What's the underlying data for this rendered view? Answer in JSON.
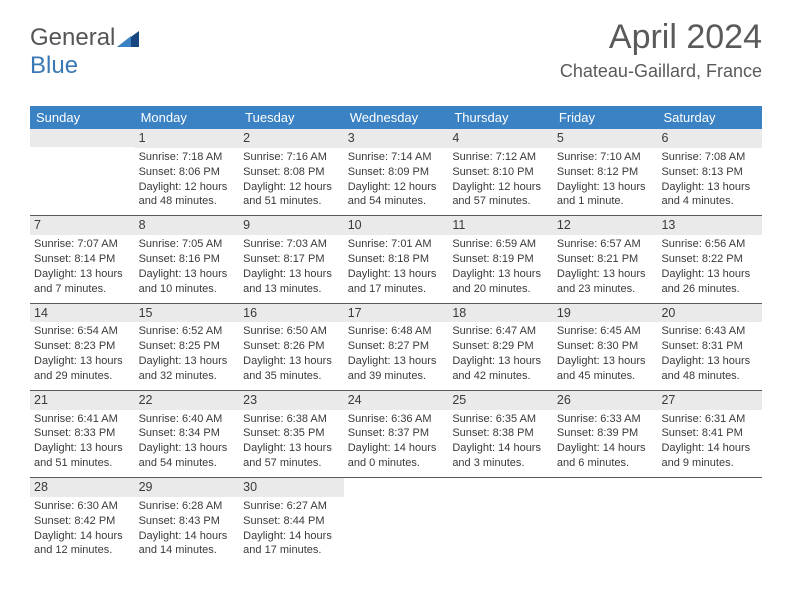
{
  "brand": {
    "part1": "General",
    "part2": "Blue"
  },
  "header": {
    "month_title": "April 2024",
    "location": "Chateau-Gaillard, France"
  },
  "colors": {
    "header_bg": "#3a82c4",
    "header_text": "#ffffff",
    "daynum_bg": "#eaeaea",
    "rule": "#5a5a5a",
    "body_text": "#3a3a3a",
    "logo_blue": "#3a78b5"
  },
  "daynames": [
    "Sunday",
    "Monday",
    "Tuesday",
    "Wednesday",
    "Thursday",
    "Friday",
    "Saturday"
  ],
  "weeks": [
    [
      {
        "blank": true
      },
      {
        "n": "1",
        "sr": "Sunrise: 7:18 AM",
        "ss": "Sunset: 8:06 PM",
        "dl": "Daylight: 12 hours and 48 minutes."
      },
      {
        "n": "2",
        "sr": "Sunrise: 7:16 AM",
        "ss": "Sunset: 8:08 PM",
        "dl": "Daylight: 12 hours and 51 minutes."
      },
      {
        "n": "3",
        "sr": "Sunrise: 7:14 AM",
        "ss": "Sunset: 8:09 PM",
        "dl": "Daylight: 12 hours and 54 minutes."
      },
      {
        "n": "4",
        "sr": "Sunrise: 7:12 AM",
        "ss": "Sunset: 8:10 PM",
        "dl": "Daylight: 12 hours and 57 minutes."
      },
      {
        "n": "5",
        "sr": "Sunrise: 7:10 AM",
        "ss": "Sunset: 8:12 PM",
        "dl": "Daylight: 13 hours and 1 minute."
      },
      {
        "n": "6",
        "sr": "Sunrise: 7:08 AM",
        "ss": "Sunset: 8:13 PM",
        "dl": "Daylight: 13 hours and 4 minutes."
      }
    ],
    [
      {
        "n": "7",
        "sr": "Sunrise: 7:07 AM",
        "ss": "Sunset: 8:14 PM",
        "dl": "Daylight: 13 hours and 7 minutes."
      },
      {
        "n": "8",
        "sr": "Sunrise: 7:05 AM",
        "ss": "Sunset: 8:16 PM",
        "dl": "Daylight: 13 hours and 10 minutes."
      },
      {
        "n": "9",
        "sr": "Sunrise: 7:03 AM",
        "ss": "Sunset: 8:17 PM",
        "dl": "Daylight: 13 hours and 13 minutes."
      },
      {
        "n": "10",
        "sr": "Sunrise: 7:01 AM",
        "ss": "Sunset: 8:18 PM",
        "dl": "Daylight: 13 hours and 17 minutes."
      },
      {
        "n": "11",
        "sr": "Sunrise: 6:59 AM",
        "ss": "Sunset: 8:19 PM",
        "dl": "Daylight: 13 hours and 20 minutes."
      },
      {
        "n": "12",
        "sr": "Sunrise: 6:57 AM",
        "ss": "Sunset: 8:21 PM",
        "dl": "Daylight: 13 hours and 23 minutes."
      },
      {
        "n": "13",
        "sr": "Sunrise: 6:56 AM",
        "ss": "Sunset: 8:22 PM",
        "dl": "Daylight: 13 hours and 26 minutes."
      }
    ],
    [
      {
        "n": "14",
        "sr": "Sunrise: 6:54 AM",
        "ss": "Sunset: 8:23 PM",
        "dl": "Daylight: 13 hours and 29 minutes."
      },
      {
        "n": "15",
        "sr": "Sunrise: 6:52 AM",
        "ss": "Sunset: 8:25 PM",
        "dl": "Daylight: 13 hours and 32 minutes."
      },
      {
        "n": "16",
        "sr": "Sunrise: 6:50 AM",
        "ss": "Sunset: 8:26 PM",
        "dl": "Daylight: 13 hours and 35 minutes."
      },
      {
        "n": "17",
        "sr": "Sunrise: 6:48 AM",
        "ss": "Sunset: 8:27 PM",
        "dl": "Daylight: 13 hours and 39 minutes."
      },
      {
        "n": "18",
        "sr": "Sunrise: 6:47 AM",
        "ss": "Sunset: 8:29 PM",
        "dl": "Daylight: 13 hours and 42 minutes."
      },
      {
        "n": "19",
        "sr": "Sunrise: 6:45 AM",
        "ss": "Sunset: 8:30 PM",
        "dl": "Daylight: 13 hours and 45 minutes."
      },
      {
        "n": "20",
        "sr": "Sunrise: 6:43 AM",
        "ss": "Sunset: 8:31 PM",
        "dl": "Daylight: 13 hours and 48 minutes."
      }
    ],
    [
      {
        "n": "21",
        "sr": "Sunrise: 6:41 AM",
        "ss": "Sunset: 8:33 PM",
        "dl": "Daylight: 13 hours and 51 minutes."
      },
      {
        "n": "22",
        "sr": "Sunrise: 6:40 AM",
        "ss": "Sunset: 8:34 PM",
        "dl": "Daylight: 13 hours and 54 minutes."
      },
      {
        "n": "23",
        "sr": "Sunrise: 6:38 AM",
        "ss": "Sunset: 8:35 PM",
        "dl": "Daylight: 13 hours and 57 minutes."
      },
      {
        "n": "24",
        "sr": "Sunrise: 6:36 AM",
        "ss": "Sunset: 8:37 PM",
        "dl": "Daylight: 14 hours and 0 minutes."
      },
      {
        "n": "25",
        "sr": "Sunrise: 6:35 AM",
        "ss": "Sunset: 8:38 PM",
        "dl": "Daylight: 14 hours and 3 minutes."
      },
      {
        "n": "26",
        "sr": "Sunrise: 6:33 AM",
        "ss": "Sunset: 8:39 PM",
        "dl": "Daylight: 14 hours and 6 minutes."
      },
      {
        "n": "27",
        "sr": "Sunrise: 6:31 AM",
        "ss": "Sunset: 8:41 PM",
        "dl": "Daylight: 14 hours and 9 minutes."
      }
    ],
    [
      {
        "n": "28",
        "sr": "Sunrise: 6:30 AM",
        "ss": "Sunset: 8:42 PM",
        "dl": "Daylight: 14 hours and 12 minutes."
      },
      {
        "n": "29",
        "sr": "Sunrise: 6:28 AM",
        "ss": "Sunset: 8:43 PM",
        "dl": "Daylight: 14 hours and 14 minutes."
      },
      {
        "n": "30",
        "sr": "Sunrise: 6:27 AM",
        "ss": "Sunset: 8:44 PM",
        "dl": "Daylight: 14 hours and 17 minutes."
      },
      {
        "blank": true
      },
      {
        "blank": true
      },
      {
        "blank": true
      },
      {
        "blank": true
      }
    ]
  ]
}
